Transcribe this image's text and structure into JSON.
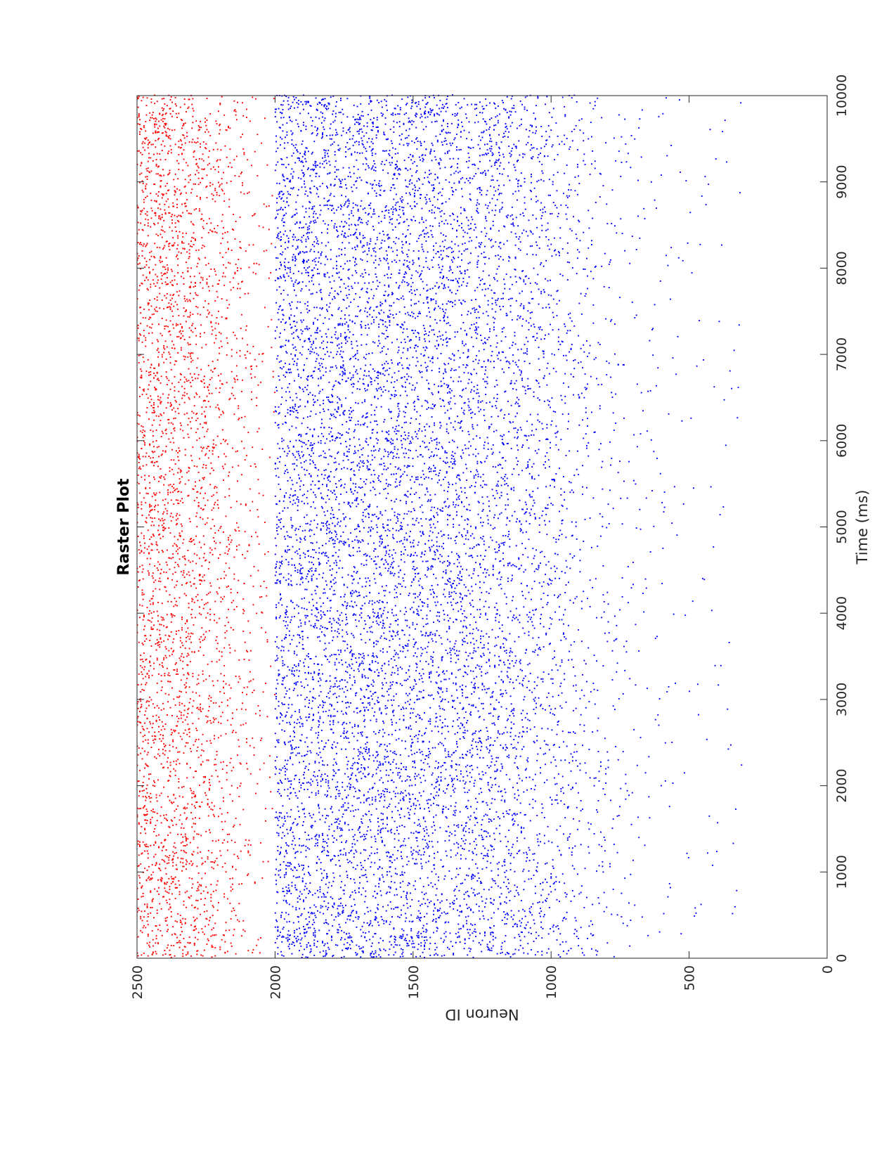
{
  "chart_data": {
    "type": "scatter",
    "title": "Raster Plot",
    "xlabel": "Time (ms)",
    "ylabel": "Neuron ID",
    "xlim": [
      0,
      10000
    ],
    "ylim": [
      0,
      2500
    ],
    "x_ticks": [
      0,
      1000,
      2000,
      3000,
      4000,
      5000,
      6000,
      7000,
      8000,
      9000,
      10000
    ],
    "y_ticks": [
      0,
      500,
      1000,
      1500,
      2000,
      2500
    ],
    "orientation": "figure rotated 90 degrees counter-clockwise",
    "grid": false,
    "legend": "none",
    "series": [
      {
        "color": "#ff0000",
        "neuron_range": [
          2001,
          2500
        ],
        "approx_density_by_neuron": [
          [
            2001,
            0.05
          ],
          [
            2100,
            0.25
          ],
          [
            2200,
            0.5
          ],
          [
            2300,
            0.8
          ],
          [
            2400,
            1.0
          ],
          [
            2500,
            1.0
          ]
        ]
      },
      {
        "color": "#0000ff",
        "neuron_range": [
          1,
          2000
        ],
        "approx_density_by_neuron": [
          [
            1,
            0.01
          ],
          [
            250,
            0.01
          ],
          [
            500,
            0.03
          ],
          [
            700,
            0.08
          ],
          [
            850,
            0.2
          ],
          [
            1000,
            0.45
          ],
          [
            1200,
            0.75
          ],
          [
            1500,
            0.95
          ],
          [
            2000,
            1.0
          ]
        ]
      }
    ]
  }
}
